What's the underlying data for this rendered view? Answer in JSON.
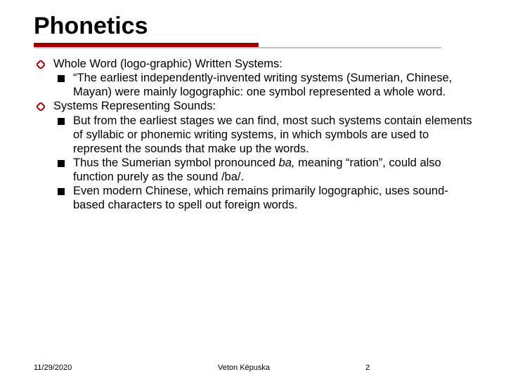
{
  "title": "Phonetics",
  "colors": {
    "underline_accent": "#a00000",
    "underline_light": "#c0c0c0",
    "text": "#000000",
    "background": "#ffffff",
    "bullet_diamond_stroke": "#a00000",
    "bullet_square": "#000000"
  },
  "typography": {
    "title_fontsize": 34,
    "body_fontsize": 16.5,
    "footer_fontsize": 11,
    "font_family": "Verdana"
  },
  "bullets": {
    "level1": [
      {
        "text": "Whole Word (logo-graphic) Written Systems:",
        "children": [
          {
            "text": "“The earliest independently-invented writing systems (Sumerian, Chinese, Mayan) were mainly logographic: one symbol represented a whole word."
          }
        ]
      },
      {
        "text": "Systems Representing Sounds:",
        "children": [
          {
            "text": "But from the earliest stages we can find, most such systems contain elements of syllabic or phonemic writing systems, in which symbols are used to represent the sounds that make up the words."
          },
          {
            "text_html": "Thus the Sumerian symbol pronounced <span class=\"italic\">ba,</span> meaning “ration”, could also function purely as the sound /ba/."
          },
          {
            "text": "Even modern Chinese, which remains primarily logographic, uses sound-based characters to spell out foreign words."
          }
        ]
      }
    ]
  },
  "footer": {
    "date": "11/29/2020",
    "author": "Veton Këpuska",
    "page": "2"
  }
}
